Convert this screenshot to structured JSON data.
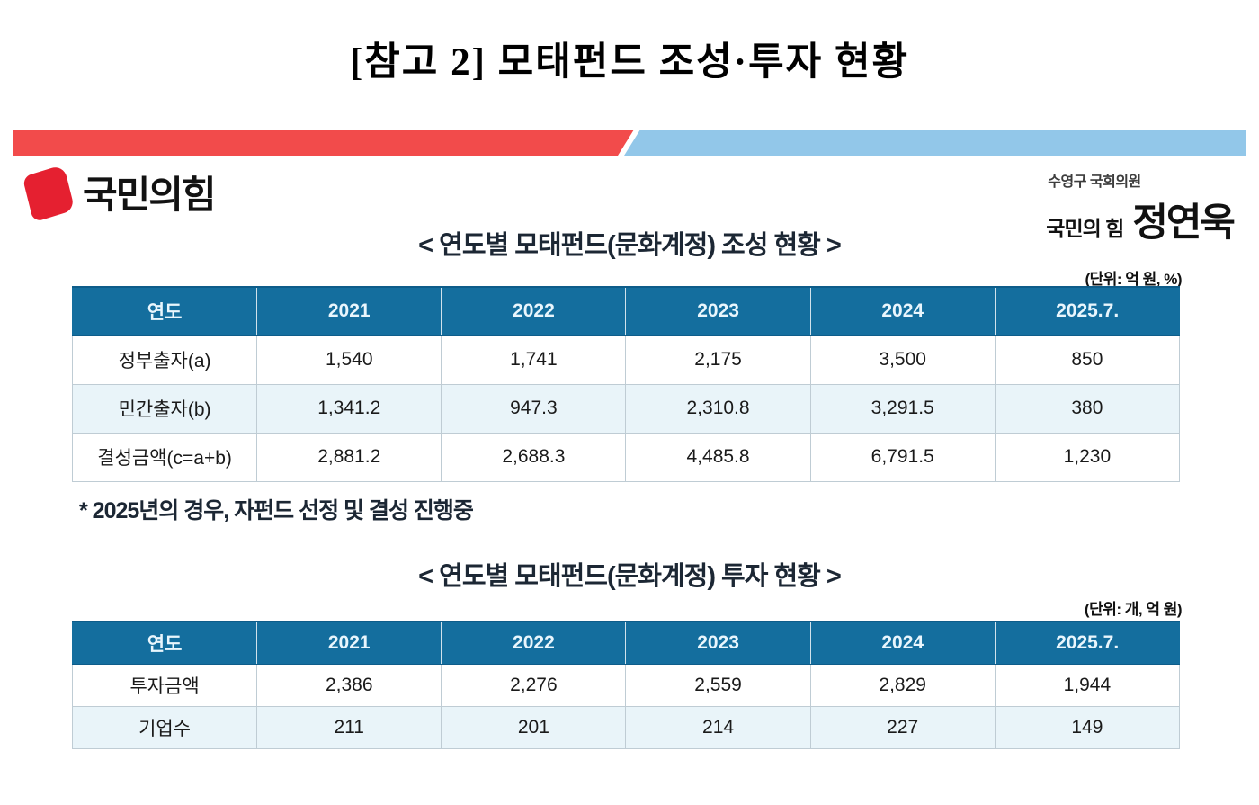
{
  "page": {
    "title": "[참고 2] 모태펀드 조성·투자 현황"
  },
  "header": {
    "party_name": "국민의힘",
    "district": "수영구 국회의원",
    "party_small": "국민의 힘",
    "member_name": "정연욱"
  },
  "colors": {
    "banner_red": "#f24b4b",
    "banner_blue": "#92c7e9",
    "logo_red": "#e52030",
    "table_header_bg": "#146e9e",
    "row_alt_bg": "#e9f4f9"
  },
  "table1": {
    "title": "< 연도별 모태펀드(문화계정) 조성 현황 >",
    "unit": "(단위: 억 원, %)",
    "columns": [
      "연도",
      "2021",
      "2022",
      "2023",
      "2024",
      "2025.7."
    ],
    "rows": [
      {
        "label": "정부출자(a)",
        "values": [
          "1,540",
          "1,741",
          "2,175",
          "3,500",
          "850"
        ]
      },
      {
        "label": "민간출자(b)",
        "values": [
          "1,341.2",
          "947.3",
          "2,310.8",
          "3,291.5",
          "380"
        ]
      },
      {
        "label": "결성금액(c=a+b)",
        "values": [
          "2,881.2",
          "2,688.3",
          "4,485.8",
          "6,791.5",
          "1,230"
        ]
      }
    ],
    "footnote": "* 2025년의 경우, 자펀드 선정 및 결성 진행중"
  },
  "table2": {
    "title": "< 연도별 모태펀드(문화계정) 투자 현황 >",
    "unit": "(단위: 개, 억 원)",
    "columns": [
      "연도",
      "2021",
      "2022",
      "2023",
      "2024",
      "2025.7."
    ],
    "rows": [
      {
        "label": "투자금액",
        "values": [
          "2,386",
          "2,276",
          "2,559",
          "2,829",
          "1,944"
        ]
      },
      {
        "label": "기업수",
        "values": [
          "211",
          "201",
          "214",
          "227",
          "149"
        ]
      }
    ]
  }
}
